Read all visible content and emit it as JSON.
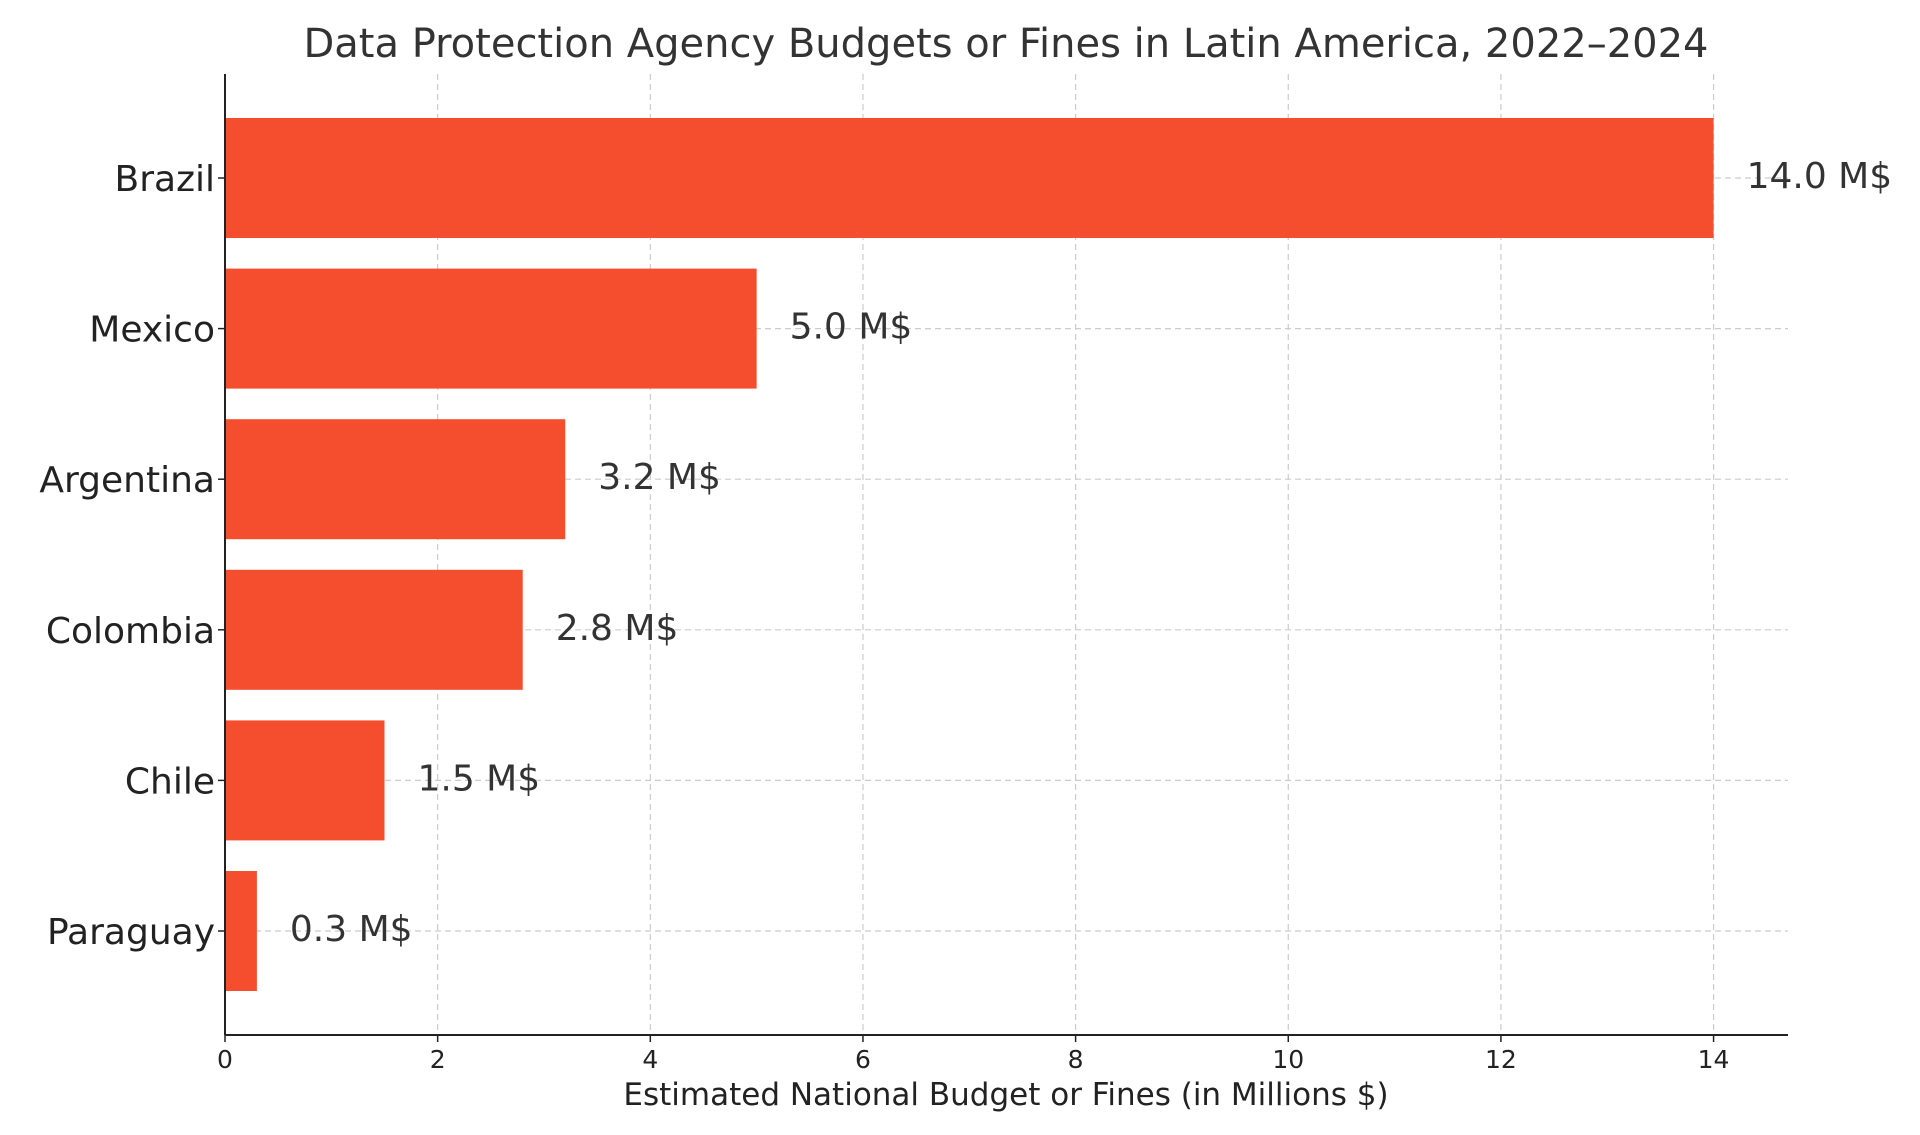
{
  "chart_data": {
    "type": "bar",
    "orientation": "horizontal",
    "title": "Data Protection Agency Budgets or Fines in Latin America, 2022–2024",
    "xlabel": "Estimated National Budget or Fines (in Millions $)",
    "ylabel": "",
    "categories": [
      "Brazil",
      "Mexico",
      "Argentina",
      "Colombia",
      "Chile",
      "Paraguay"
    ],
    "values": [
      14.0,
      5.0,
      3.2,
      2.8,
      1.5,
      0.3
    ],
    "data_labels": [
      "14.0 M$",
      "5.0 M$",
      "3.2 M$",
      "2.8 M$",
      "1.5 M$",
      "0.3 M$"
    ],
    "xlim": [
      0,
      14.7
    ],
    "xticks": [
      0,
      2,
      4,
      6,
      8,
      10,
      12,
      14
    ],
    "xtick_labels": [
      "0",
      "2",
      "4",
      "6",
      "8",
      "10",
      "12",
      "14"
    ],
    "grid": true,
    "bar_color": "#f44e2f"
  }
}
